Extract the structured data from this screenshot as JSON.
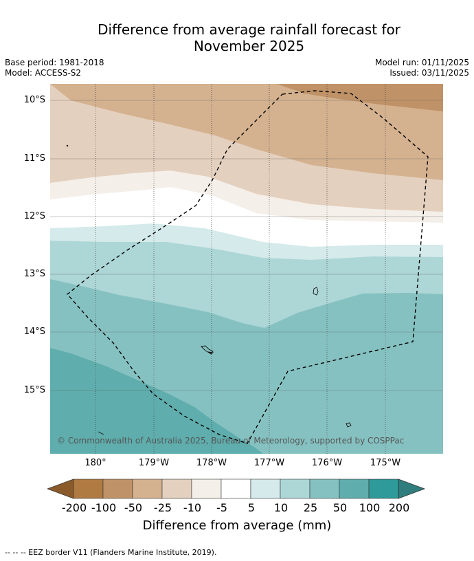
{
  "title_line1": "Difference from average rainfall forecast for",
  "title_line2": "November 2025",
  "meta_left": [
    "Base period: 1981-2018",
    "Model: ACCESS-S2"
  ],
  "meta_right": [
    "Model run: 01/11/2025",
    "Issued: 03/11/2025"
  ],
  "lat_labels": [
    "10°S",
    "11°S",
    "12°S",
    "13°S",
    "14°S",
    "15°S"
  ],
  "lon_labels": [
    "180°",
    "179°W",
    "178°W",
    "177°W",
    "176°W",
    "175°W"
  ],
  "copyright": "© Commonwealth of Australia 2025, Bureau of Meteorology, supported by COSPPac",
  "colorbar": {
    "title": "Difference from average (mm)",
    "labels": [
      "-200",
      "-100",
      "-50",
      "-25",
      "-10",
      "-5",
      "5",
      "10",
      "25",
      "50",
      "100",
      "200"
    ],
    "colors": [
      "#8b5a2b",
      "#b07a43",
      "#c09267",
      "#d4b18f",
      "#e4d0be",
      "#f4efe9",
      "#ffffff",
      "#d5eaea",
      "#add6d6",
      "#86c1c1",
      "#5fadad",
      "#2e9a9a",
      "#2f7d7d"
    ]
  },
  "footnote": "--  --  -- EEZ border V11 (Flanders Marine Institute, 2019)."
}
